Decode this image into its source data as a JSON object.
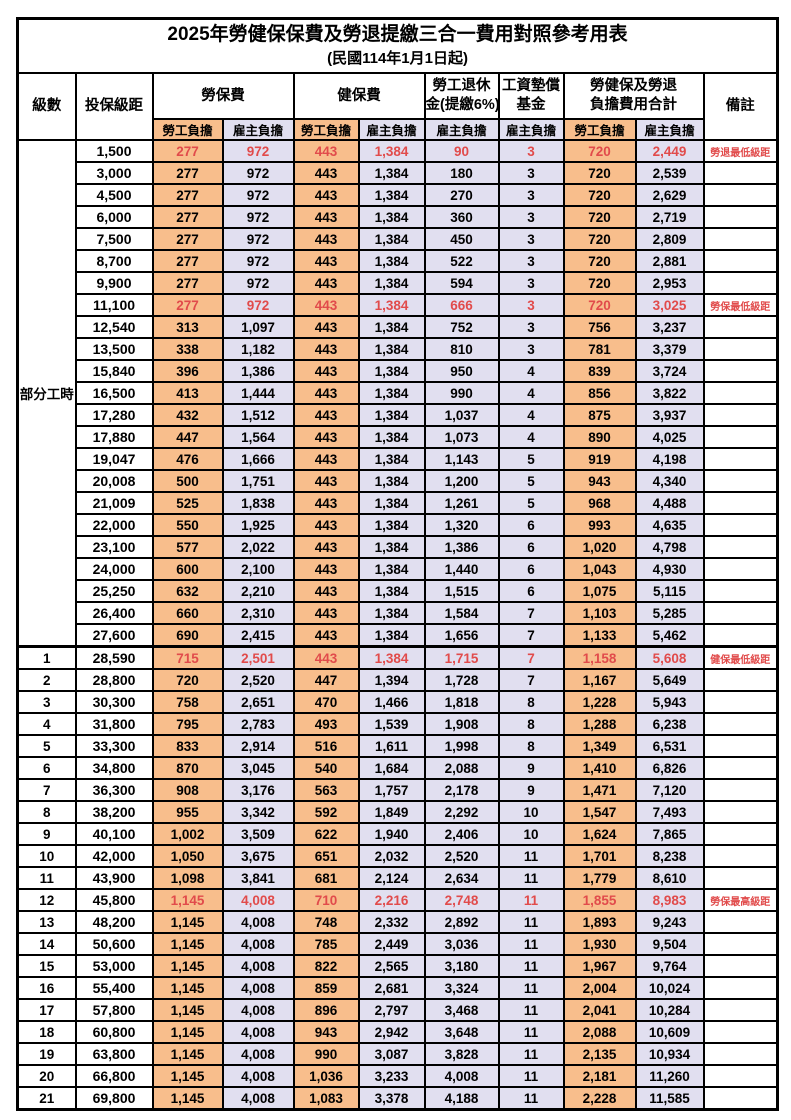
{
  "title": "2025年勞健保保費及勞退提繳三合一費用對照參考用表",
  "subtitle": "(民國114年1月1日起)",
  "header": {
    "level": "級數",
    "salary_bracket": "投保級距",
    "labor_insurance": "勞保費",
    "health_insurance": "健保費",
    "pension_line1": "勞工退休",
    "pension_line2": "金(提繳6%)",
    "wage_fund_line1": "工資墊償",
    "wage_fund_line2": "基金",
    "total_line1": "勞健保及勞退",
    "total_line2": "負擔費用合計",
    "remarks": "備註",
    "employee_share": "勞工負擔",
    "employer_share": "雇主負擔"
  },
  "part_time": {
    "label": "部分工時",
    "span": 23
  },
  "colors": {
    "employee_bg": "#F8BE8C",
    "employer_bg": "#E1DFF0",
    "highlight_red": "#E14B4B",
    "border": "#000000"
  },
  "rows": [
    {
      "level": "",
      "bracket": "1,500",
      "v": [
        "277",
        "972",
        "443",
        "1,384",
        "90",
        "3",
        "720",
        "2,449"
      ],
      "note": "勞退最低級距",
      "red": true
    },
    {
      "level": "",
      "bracket": "3,000",
      "v": [
        "277",
        "972",
        "443",
        "1,384",
        "180",
        "3",
        "720",
        "2,539"
      ],
      "note": "",
      "red": false
    },
    {
      "level": "",
      "bracket": "4,500",
      "v": [
        "277",
        "972",
        "443",
        "1,384",
        "270",
        "3",
        "720",
        "2,629"
      ],
      "note": "",
      "red": false
    },
    {
      "level": "",
      "bracket": "6,000",
      "v": [
        "277",
        "972",
        "443",
        "1,384",
        "360",
        "3",
        "720",
        "2,719"
      ],
      "note": "",
      "red": false
    },
    {
      "level": "",
      "bracket": "7,500",
      "v": [
        "277",
        "972",
        "443",
        "1,384",
        "450",
        "3",
        "720",
        "2,809"
      ],
      "note": "",
      "red": false
    },
    {
      "level": "",
      "bracket": "8,700",
      "v": [
        "277",
        "972",
        "443",
        "1,384",
        "522",
        "3",
        "720",
        "2,881"
      ],
      "note": "",
      "red": false
    },
    {
      "level": "",
      "bracket": "9,900",
      "v": [
        "277",
        "972",
        "443",
        "1,384",
        "594",
        "3",
        "720",
        "2,953"
      ],
      "note": "",
      "red": false
    },
    {
      "level": "",
      "bracket": "11,100",
      "v": [
        "277",
        "972",
        "443",
        "1,384",
        "666",
        "3",
        "720",
        "3,025"
      ],
      "note": "勞保最低級距",
      "red": true
    },
    {
      "level": "",
      "bracket": "12,540",
      "v": [
        "313",
        "1,097",
        "443",
        "1,384",
        "752",
        "3",
        "756",
        "3,237"
      ],
      "note": "",
      "red": false
    },
    {
      "level": "",
      "bracket": "13,500",
      "v": [
        "338",
        "1,182",
        "443",
        "1,384",
        "810",
        "3",
        "781",
        "3,379"
      ],
      "note": "",
      "red": false
    },
    {
      "level": "",
      "bracket": "15,840",
      "v": [
        "396",
        "1,386",
        "443",
        "1,384",
        "950",
        "4",
        "839",
        "3,724"
      ],
      "note": "",
      "red": false
    },
    {
      "level": "",
      "bracket": "16,500",
      "v": [
        "413",
        "1,444",
        "443",
        "1,384",
        "990",
        "4",
        "856",
        "3,822"
      ],
      "note": "",
      "red": false
    },
    {
      "level": "",
      "bracket": "17,280",
      "v": [
        "432",
        "1,512",
        "443",
        "1,384",
        "1,037",
        "4",
        "875",
        "3,937"
      ],
      "note": "",
      "red": false
    },
    {
      "level": "",
      "bracket": "17,880",
      "v": [
        "447",
        "1,564",
        "443",
        "1,384",
        "1,073",
        "4",
        "890",
        "4,025"
      ],
      "note": "",
      "red": false
    },
    {
      "level": "",
      "bracket": "19,047",
      "v": [
        "476",
        "1,666",
        "443",
        "1,384",
        "1,143",
        "5",
        "919",
        "4,198"
      ],
      "note": "",
      "red": false
    },
    {
      "level": "",
      "bracket": "20,008",
      "v": [
        "500",
        "1,751",
        "443",
        "1,384",
        "1,200",
        "5",
        "943",
        "4,340"
      ],
      "note": "",
      "red": false
    },
    {
      "level": "",
      "bracket": "21,009",
      "v": [
        "525",
        "1,838",
        "443",
        "1,384",
        "1,261",
        "5",
        "968",
        "4,488"
      ],
      "note": "",
      "red": false
    },
    {
      "level": "",
      "bracket": "22,000",
      "v": [
        "550",
        "1,925",
        "443",
        "1,384",
        "1,320",
        "6",
        "993",
        "4,635"
      ],
      "note": "",
      "red": false
    },
    {
      "level": "",
      "bracket": "23,100",
      "v": [
        "577",
        "2,022",
        "443",
        "1,384",
        "1,386",
        "6",
        "1,020",
        "4,798"
      ],
      "note": "",
      "red": false
    },
    {
      "level": "",
      "bracket": "24,000",
      "v": [
        "600",
        "2,100",
        "443",
        "1,384",
        "1,440",
        "6",
        "1,043",
        "4,930"
      ],
      "note": "",
      "red": false
    },
    {
      "level": "",
      "bracket": "25,250",
      "v": [
        "632",
        "2,210",
        "443",
        "1,384",
        "1,515",
        "6",
        "1,075",
        "5,115"
      ],
      "note": "",
      "red": false
    },
    {
      "level": "",
      "bracket": "26,400",
      "v": [
        "660",
        "2,310",
        "443",
        "1,384",
        "1,584",
        "7",
        "1,103",
        "5,285"
      ],
      "note": "",
      "red": false
    },
    {
      "level": "",
      "bracket": "27,600",
      "v": [
        "690",
        "2,415",
        "443",
        "1,384",
        "1,656",
        "7",
        "1,133",
        "5,462"
      ],
      "note": "",
      "red": false
    },
    {
      "level": "1",
      "bracket": "28,590",
      "v": [
        "715",
        "2,501",
        "443",
        "1,384",
        "1,715",
        "7",
        "1,158",
        "5,608"
      ],
      "note": "健保最低級距",
      "red": true,
      "thick_top": true
    },
    {
      "level": "2",
      "bracket": "28,800",
      "v": [
        "720",
        "2,520",
        "447",
        "1,394",
        "1,728",
        "7",
        "1,167",
        "5,649"
      ],
      "note": "",
      "red": false
    },
    {
      "level": "3",
      "bracket": "30,300",
      "v": [
        "758",
        "2,651",
        "470",
        "1,466",
        "1,818",
        "8",
        "1,228",
        "5,943"
      ],
      "note": "",
      "red": false
    },
    {
      "level": "4",
      "bracket": "31,800",
      "v": [
        "795",
        "2,783",
        "493",
        "1,539",
        "1,908",
        "8",
        "1,288",
        "6,238"
      ],
      "note": "",
      "red": false
    },
    {
      "level": "5",
      "bracket": "33,300",
      "v": [
        "833",
        "2,914",
        "516",
        "1,611",
        "1,998",
        "8",
        "1,349",
        "6,531"
      ],
      "note": "",
      "red": false
    },
    {
      "level": "6",
      "bracket": "34,800",
      "v": [
        "870",
        "3,045",
        "540",
        "1,684",
        "2,088",
        "9",
        "1,410",
        "6,826"
      ],
      "note": "",
      "red": false
    },
    {
      "level": "7",
      "bracket": "36,300",
      "v": [
        "908",
        "3,176",
        "563",
        "1,757",
        "2,178",
        "9",
        "1,471",
        "7,120"
      ],
      "note": "",
      "red": false
    },
    {
      "level": "8",
      "bracket": "38,200",
      "v": [
        "955",
        "3,342",
        "592",
        "1,849",
        "2,292",
        "10",
        "1,547",
        "7,493"
      ],
      "note": "",
      "red": false
    },
    {
      "level": "9",
      "bracket": "40,100",
      "v": [
        "1,002",
        "3,509",
        "622",
        "1,940",
        "2,406",
        "10",
        "1,624",
        "7,865"
      ],
      "note": "",
      "red": false
    },
    {
      "level": "10",
      "bracket": "42,000",
      "v": [
        "1,050",
        "3,675",
        "651",
        "2,032",
        "2,520",
        "11",
        "1,701",
        "8,238"
      ],
      "note": "",
      "red": false
    },
    {
      "level": "11",
      "bracket": "43,900",
      "v": [
        "1,098",
        "3,841",
        "681",
        "2,124",
        "2,634",
        "11",
        "1,779",
        "8,610"
      ],
      "note": "",
      "red": false
    },
    {
      "level": "12",
      "bracket": "45,800",
      "v": [
        "1,145",
        "4,008",
        "710",
        "2,216",
        "2,748",
        "11",
        "1,855",
        "8,983"
      ],
      "note": "勞保最高級距",
      "red": true
    },
    {
      "level": "13",
      "bracket": "48,200",
      "v": [
        "1,145",
        "4,008",
        "748",
        "2,332",
        "2,892",
        "11",
        "1,893",
        "9,243"
      ],
      "note": "",
      "red": false
    },
    {
      "level": "14",
      "bracket": "50,600",
      "v": [
        "1,145",
        "4,008",
        "785",
        "2,449",
        "3,036",
        "11",
        "1,930",
        "9,504"
      ],
      "note": "",
      "red": false
    },
    {
      "level": "15",
      "bracket": "53,000",
      "v": [
        "1,145",
        "4,008",
        "822",
        "2,565",
        "3,180",
        "11",
        "1,967",
        "9,764"
      ],
      "note": "",
      "red": false
    },
    {
      "level": "16",
      "bracket": "55,400",
      "v": [
        "1,145",
        "4,008",
        "859",
        "2,681",
        "3,324",
        "11",
        "2,004",
        "10,024"
      ],
      "note": "",
      "red": false
    },
    {
      "level": "17",
      "bracket": "57,800",
      "v": [
        "1,145",
        "4,008",
        "896",
        "2,797",
        "3,468",
        "11",
        "2,041",
        "10,284"
      ],
      "note": "",
      "red": false
    },
    {
      "level": "18",
      "bracket": "60,800",
      "v": [
        "1,145",
        "4,008",
        "943",
        "2,942",
        "3,648",
        "11",
        "2,088",
        "10,609"
      ],
      "note": "",
      "red": false
    },
    {
      "level": "19",
      "bracket": "63,800",
      "v": [
        "1,145",
        "4,008",
        "990",
        "3,087",
        "3,828",
        "11",
        "2,135",
        "10,934"
      ],
      "note": "",
      "red": false
    },
    {
      "level": "20",
      "bracket": "66,800",
      "v": [
        "1,145",
        "4,008",
        "1,036",
        "3,233",
        "4,008",
        "11",
        "2,181",
        "11,260"
      ],
      "note": "",
      "red": false
    },
    {
      "level": "21",
      "bracket": "69,800",
      "v": [
        "1,145",
        "4,008",
        "1,083",
        "3,378",
        "4,188",
        "11",
        "2,228",
        "11,585"
      ],
      "note": "",
      "red": false
    }
  ]
}
